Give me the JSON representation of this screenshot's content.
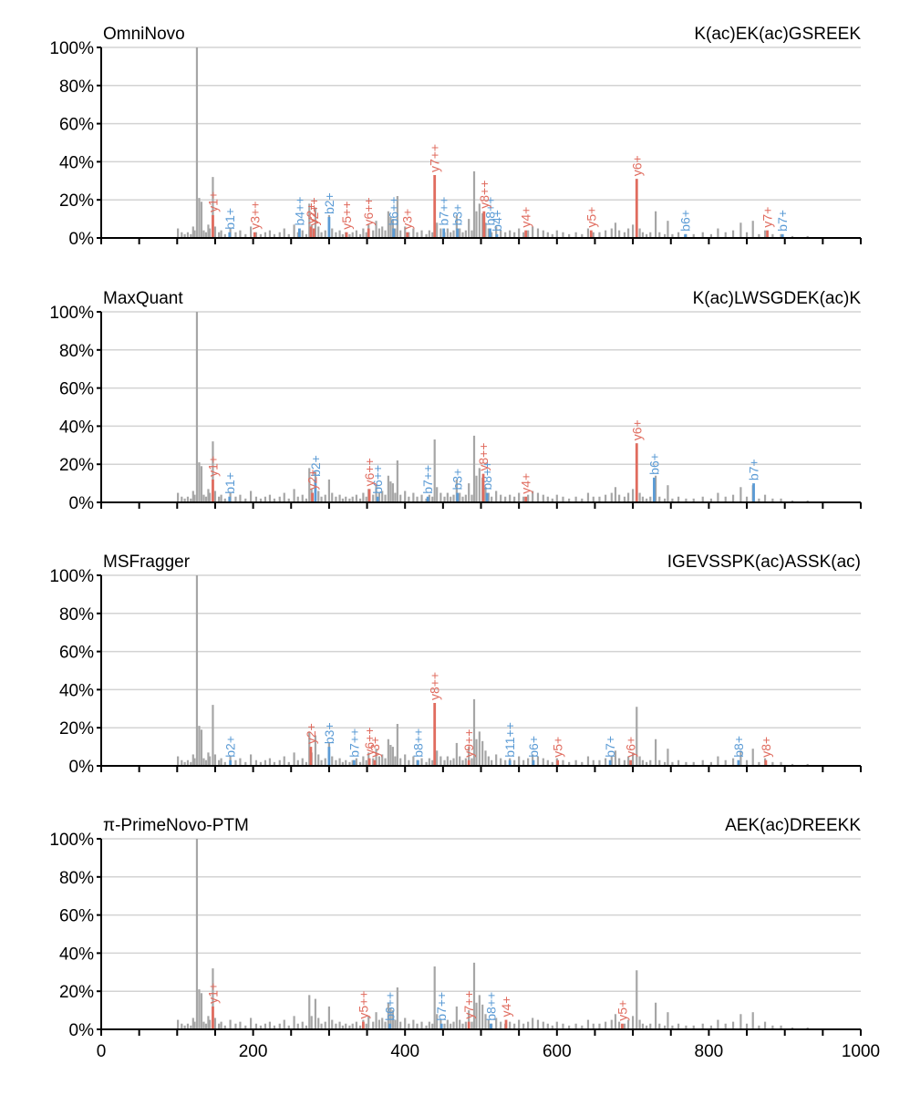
{
  "colors": {
    "noise": "#a6a6a6",
    "b_ion": "#5b9bd5",
    "y_ion": "#e06c5f",
    "grid": "#d3d3d3",
    "axis": "#000000"
  },
  "chart_data": [
    {
      "type": "bar",
      "title": "OmniNovo",
      "peptide": "K(ac)EK(ac)GSREEK",
      "xlim": [
        0,
        1000
      ],
      "ylim": [
        0,
        100
      ],
      "yticks": [
        "0%",
        "20%",
        "40%",
        "60%",
        "80%",
        "100%"
      ],
      "xticks": [
        "0",
        "200",
        "400",
        "600",
        "800",
        "1000"
      ],
      "x_tick_labels_shown": false,
      "grid": "horizontal",
      "annotations": [
        {
          "ion": "b1+",
          "series": "b",
          "x": 169,
          "y": 3
        },
        {
          "ion": "b4++",
          "series": "b",
          "x": 261,
          "y": 5
        },
        {
          "ion": "b2+",
          "series": "b",
          "x": 300,
          "y": 11
        },
        {
          "ion": "b6++",
          "series": "b",
          "x": 385,
          "y": 5
        },
        {
          "ion": "b7++",
          "series": "b",
          "x": 451,
          "y": 5
        },
        {
          "ion": "b3+",
          "series": "b",
          "x": 469,
          "y": 5
        },
        {
          "ion": "b8++",
          "series": "b",
          "x": 512,
          "y": 5
        },
        {
          "ion": "b4+",
          "series": "b",
          "x": 521,
          "y": 2
        },
        {
          "ion": "b6+",
          "series": "b",
          "x": 769,
          "y": 2
        },
        {
          "ion": "b7+",
          "series": "b",
          "x": 897,
          "y": 2
        },
        {
          "ion": "y1+",
          "series": "y",
          "x": 147,
          "y": 12
        },
        {
          "ion": "y3++",
          "series": "y",
          "x": 202,
          "y": 3
        },
        {
          "ion": "y2+",
          "series": "y",
          "x": 276,
          "y": 6
        },
        {
          "ion": "y2++",
          "series": "y",
          "x": 280,
          "y": 5
        },
        {
          "ion": "y5++",
          "series": "y",
          "x": 323,
          "y": 3
        },
        {
          "ion": "y6++",
          "series": "y",
          "x": 352,
          "y": 5
        },
        {
          "ion": "y3+",
          "series": "y",
          "x": 403,
          "y": 3
        },
        {
          "ion": "y7++",
          "series": "y",
          "x": 439,
          "y": 33
        },
        {
          "ion": "y8++",
          "series": "y",
          "x": 504,
          "y": 14
        },
        {
          "ion": "y4+",
          "series": "y",
          "x": 559,
          "y": 4
        },
        {
          "ion": "y5+",
          "series": "y",
          "x": 645,
          "y": 4
        },
        {
          "ion": "y6+",
          "series": "y",
          "x": 705,
          "y": 31
        },
        {
          "ion": "y7+",
          "series": "y",
          "x": 877,
          "y": 4
        }
      ]
    },
    {
      "type": "bar",
      "title": "MaxQuant",
      "peptide": "K(ac)LWSGDEK(ac)K",
      "xlim": [
        0,
        1000
      ],
      "ylim": [
        0,
        100
      ],
      "yticks": [
        "0%",
        "20%",
        "40%",
        "60%",
        "80%",
        "100%"
      ],
      "xticks": [
        "0",
        "200",
        "400",
        "600",
        "800",
        "1000"
      ],
      "x_tick_labels_shown": false,
      "grid": "horizontal",
      "annotations": [
        {
          "ion": "b1+",
          "series": "b",
          "x": 169,
          "y": 3
        },
        {
          "ion": "b2+",
          "series": "b",
          "x": 282,
          "y": 12
        },
        {
          "ion": "b6++",
          "series": "b",
          "x": 364,
          "y": 3
        },
        {
          "ion": "b7++",
          "series": "b",
          "x": 430,
          "y": 3
        },
        {
          "ion": "b3+",
          "series": "b",
          "x": 469,
          "y": 5
        },
        {
          "ion": "b8++",
          "series": "b",
          "x": 508,
          "y": 5
        },
        {
          "ion": "b6+",
          "series": "b",
          "x": 728,
          "y": 13
        },
        {
          "ion": "b7+",
          "series": "b",
          "x": 859,
          "y": 10
        },
        {
          "ion": "y1+",
          "series": "y",
          "x": 147,
          "y": 12
        },
        {
          "ion": "y2+",
          "series": "y",
          "x": 278,
          "y": 5
        },
        {
          "ion": "y6++",
          "series": "y",
          "x": 353,
          "y": 7
        },
        {
          "ion": "y8++",
          "series": "y",
          "x": 503,
          "y": 15
        },
        {
          "ion": "y4+",
          "series": "y",
          "x": 559,
          "y": 3
        },
        {
          "ion": "y6+",
          "series": "y",
          "x": 705,
          "y": 31
        }
      ]
    },
    {
      "type": "bar",
      "title": "MSFragger",
      "peptide": "IGEVSSPK(ac)ASSK(ac)",
      "xlim": [
        0,
        1000
      ],
      "ylim": [
        0,
        100
      ],
      "yticks": [
        "0%",
        "20%",
        "40%",
        "60%",
        "80%",
        "100%"
      ],
      "xticks": [
        "0",
        "200",
        "400",
        "600",
        "800",
        "1000"
      ],
      "x_tick_labels_shown": false,
      "grid": "horizontal",
      "annotations": [
        {
          "ion": "b2+",
          "series": "b",
          "x": 170,
          "y": 3
        },
        {
          "ion": "b3+",
          "series": "b",
          "x": 300,
          "y": 10
        },
        {
          "ion": "b7++",
          "series": "b",
          "x": 333,
          "y": 3
        },
        {
          "ion": "b8++",
          "series": "b",
          "x": 417,
          "y": 3
        },
        {
          "ion": "b11++",
          "series": "b",
          "x": 538,
          "y": 3
        },
        {
          "ion": "b6+",
          "series": "b",
          "x": 569,
          "y": 3
        },
        {
          "ion": "b7+",
          "series": "b",
          "x": 670,
          "y": 3
        },
        {
          "ion": "b8+",
          "series": "b",
          "x": 839,
          "y": 3
        },
        {
          "ion": "y2+",
          "series": "y",
          "x": 276,
          "y": 10
        },
        {
          "ion": "y6++",
          "series": "y",
          "x": 353,
          "y": 4
        },
        {
          "ion": "y3+",
          "series": "y",
          "x": 360,
          "y": 3
        },
        {
          "ion": "y8++",
          "series": "y",
          "x": 439,
          "y": 33
        },
        {
          "ion": "y9++",
          "series": "y",
          "x": 484,
          "y": 3
        },
        {
          "ion": "y5+",
          "series": "y",
          "x": 601,
          "y": 3
        },
        {
          "ion": "y6+",
          "series": "y",
          "x": 697,
          "y": 3
        },
        {
          "ion": "y8+",
          "series": "y",
          "x": 875,
          "y": 3
        }
      ]
    },
    {
      "type": "bar",
      "title": "π-PrimeNovo-PTM",
      "peptide": "AEK(ac)DREEKK",
      "xlim": [
        0,
        1000
      ],
      "ylim": [
        0,
        100
      ],
      "yticks": [
        "0%",
        "20%",
        "40%",
        "60%",
        "80%",
        "100%"
      ],
      "xticks": [
        "0",
        "200",
        "400",
        "600",
        "800",
        "1000"
      ],
      "x_tick_labels_shown": true,
      "grid": "horizontal",
      "annotations": [
        {
          "ion": "b6++",
          "series": "b",
          "x": 380,
          "y": 3
        },
        {
          "ion": "b7++",
          "series": "b",
          "x": 448,
          "y": 3
        },
        {
          "ion": "b8++",
          "series": "b",
          "x": 513,
          "y": 3
        },
        {
          "ion": "y1+",
          "series": "y",
          "x": 147,
          "y": 12
        },
        {
          "ion": "y5++",
          "series": "y",
          "x": 345,
          "y": 4
        },
        {
          "ion": "y7++",
          "series": "y",
          "x": 484,
          "y": 4
        },
        {
          "ion": "y4+",
          "series": "y",
          "x": 533,
          "y": 5
        },
        {
          "ion": "y5+",
          "series": "y",
          "x": 686,
          "y": 3
        }
      ]
    }
  ],
  "background_peaks": [
    [
      101,
      5
    ],
    [
      106,
      3
    ],
    [
      110,
      2
    ],
    [
      114,
      3
    ],
    [
      118,
      2
    ],
    [
      121,
      6
    ],
    [
      123,
      4
    ],
    [
      126,
      100
    ],
    [
      129,
      21
    ],
    [
      132,
      19
    ],
    [
      135,
      4
    ],
    [
      138,
      3
    ],
    [
      141,
      7
    ],
    [
      143,
      5
    ],
    [
      147,
      32
    ],
    [
      150,
      6
    ],
    [
      155,
      3
    ],
    [
      158,
      4
    ],
    [
      163,
      2
    ],
    [
      170,
      5
    ],
    [
      177,
      3
    ],
    [
      183,
      4
    ],
    [
      190,
      2
    ],
    [
      197,
      6
    ],
    [
      204,
      3
    ],
    [
      210,
      2
    ],
    [
      216,
      3
    ],
    [
      222,
      4
    ],
    [
      228,
      2
    ],
    [
      235,
      3
    ],
    [
      241,
      5
    ],
    [
      247,
      2
    ],
    [
      254,
      7
    ],
    [
      259,
      3
    ],
    [
      265,
      4
    ],
    [
      270,
      2
    ],
    [
      274,
      18
    ],
    [
      277,
      7
    ],
    [
      282,
      16
    ],
    [
      286,
      6
    ],
    [
      290,
      3
    ],
    [
      295,
      4
    ],
    [
      300,
      12
    ],
    [
      304,
      5
    ],
    [
      309,
      3
    ],
    [
      314,
      4
    ],
    [
      318,
      2
    ],
    [
      322,
      3
    ],
    [
      327,
      2
    ],
    [
      331,
      3
    ],
    [
      336,
      4
    ],
    [
      341,
      2
    ],
    [
      345,
      5
    ],
    [
      349,
      3
    ],
    [
      352,
      7
    ],
    [
      358,
      4
    ],
    [
      362,
      9
    ],
    [
      366,
      5
    ],
    [
      370,
      6
    ],
    [
      374,
      4
    ],
    [
      378,
      14
    ],
    [
      381,
      11
    ],
    [
      384,
      10
    ],
    [
      387,
      5
    ],
    [
      390,
      22
    ],
    [
      394,
      4
    ],
    [
      400,
      6
    ],
    [
      405,
      3
    ],
    [
      411,
      5
    ],
    [
      416,
      3
    ],
    [
      422,
      4
    ],
    [
      428,
      2
    ],
    [
      432,
      4
    ],
    [
      436,
      3
    ],
    [
      439,
      33
    ],
    [
      442,
      8
    ],
    [
      447,
      5
    ],
    [
      452,
      3
    ],
    [
      456,
      5
    ],
    [
      460,
      3
    ],
    [
      464,
      4
    ],
    [
      468,
      12
    ],
    [
      472,
      5
    ],
    [
      476,
      3
    ],
    [
      480,
      4
    ],
    [
      484,
      10
    ],
    [
      488,
      4
    ],
    [
      491,
      35
    ],
    [
      494,
      14
    ],
    [
      498,
      18
    ],
    [
      502,
      13
    ],
    [
      506,
      8
    ],
    [
      510,
      5
    ],
    [
      514,
      3
    ],
    [
      520,
      6
    ],
    [
      526,
      4
    ],
    [
      532,
      3
    ],
    [
      538,
      4
    ],
    [
      544,
      3
    ],
    [
      550,
      5
    ],
    [
      556,
      3
    ],
    [
      562,
      4
    ],
    [
      568,
      6
    ],
    [
      575,
      5
    ],
    [
      582,
      4
    ],
    [
      588,
      3
    ],
    [
      594,
      2
    ],
    [
      600,
      4
    ],
    [
      608,
      3
    ],
    [
      616,
      2
    ],
    [
      625,
      3
    ],
    [
      633,
      2
    ],
    [
      641,
      5
    ],
    [
      648,
      3
    ],
    [
      656,
      3
    ],
    [
      664,
      4
    ],
    [
      672,
      5
    ],
    [
      677,
      8
    ],
    [
      682,
      4
    ],
    [
      689,
      3
    ],
    [
      694,
      5
    ],
    [
      700,
      7
    ],
    [
      705,
      31
    ],
    [
      709,
      5
    ],
    [
      713,
      3
    ],
    [
      718,
      2
    ],
    [
      723,
      3
    ],
    [
      730,
      14
    ],
    [
      735,
      3
    ],
    [
      742,
      2
    ],
    [
      746,
      9
    ],
    [
      752,
      2
    ],
    [
      760,
      3
    ],
    [
      770,
      2
    ],
    [
      780,
      2
    ],
    [
      792,
      3
    ],
    [
      803,
      2
    ],
    [
      812,
      5
    ],
    [
      822,
      3
    ],
    [
      832,
      4
    ],
    [
      842,
      8
    ],
    [
      850,
      3
    ],
    [
      858,
      9
    ],
    [
      866,
      2
    ],
    [
      874,
      4
    ],
    [
      884,
      2
    ],
    [
      895,
      2
    ],
    [
      910,
      1
    ],
    [
      930,
      1
    ]
  ]
}
